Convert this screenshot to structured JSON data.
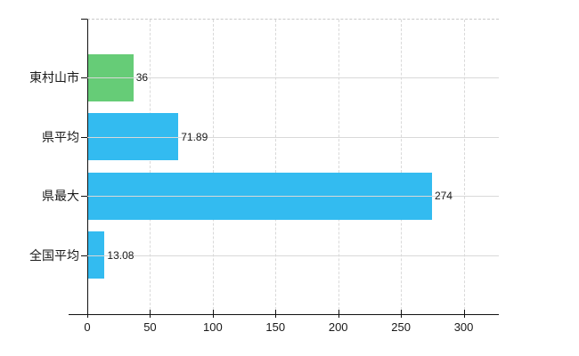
{
  "chart_data": {
    "type": "bar",
    "orientation": "horizontal",
    "title": "",
    "xlabel": "",
    "ylabel": "",
    "categories": [
      "東村山市",
      "県平均",
      "県最大",
      "全国平均"
    ],
    "values": [
      36,
      71.89,
      274,
      13.08
    ],
    "value_labels": [
      "36",
      "71.89",
      "274",
      "13.08"
    ],
    "bar_colors": [
      "#66cc77",
      "#33bbf0",
      "#33bbf0",
      "#33bbf0"
    ],
    "xlim": [
      0,
      328
    ],
    "xticks": [
      0,
      50,
      100,
      150,
      200,
      250,
      300
    ],
    "grid": true,
    "legend": false,
    "background": "#ffffff",
    "axis_color": "#111111",
    "grid_color": "#d9d9d9",
    "text_color": "#1a1a1a"
  }
}
